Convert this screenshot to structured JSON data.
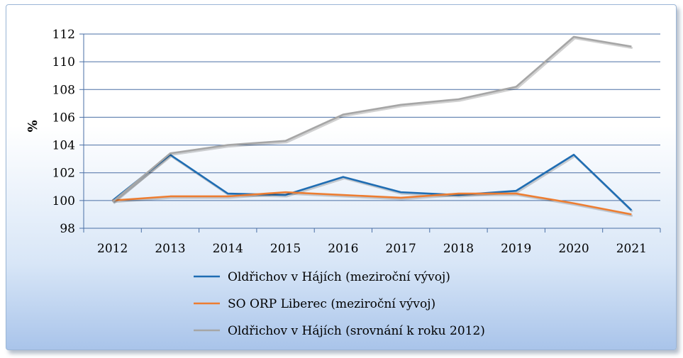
{
  "chart_data": {
    "type": "line",
    "ylabel": "%",
    "xlabel": "",
    "ylim": [
      98,
      112
    ],
    "yticks": [
      "98",
      "100",
      "102",
      "104",
      "106",
      "108",
      "110",
      "112"
    ],
    "categories": [
      "2012",
      "2013",
      "2014",
      "2015",
      "2016",
      "2017",
      "2018",
      "2019",
      "2020",
      "2021"
    ],
    "grid": true,
    "legend_position": "bottom",
    "series": [
      {
        "name": "Oldřichov v Hájích (meziroční vývoj)",
        "color": "#1f6db3",
        "values": [
          100.0,
          103.3,
          100.5,
          100.4,
          101.7,
          100.6,
          100.4,
          100.7,
          103.3,
          99.3
        ]
      },
      {
        "name": "SO ORP Liberec (meziroční vývoj)",
        "color": "#ed7d31",
        "values": [
          100.0,
          100.3,
          100.3,
          100.6,
          100.4,
          100.2,
          100.5,
          100.5,
          99.8,
          99.0
        ]
      },
      {
        "name": "Oldřichov v Hájích (srovnání k roku 2012)",
        "color": "#a6a6a6",
        "values": [
          99.9,
          103.4,
          104.0,
          104.3,
          106.2,
          106.9,
          107.3,
          108.2,
          111.8,
          111.1
        ]
      }
    ]
  }
}
